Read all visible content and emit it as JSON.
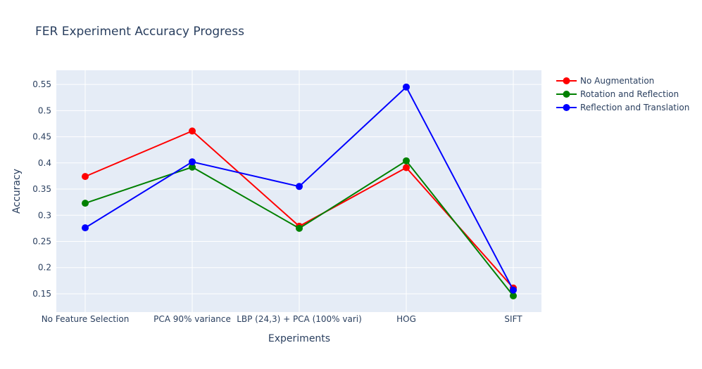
{
  "chart_data": {
    "type": "line",
    "title": "FER Experiment Accuracy Progress",
    "xlabel": "Experiments",
    "ylabel": "Accuracy",
    "categories": [
      "No Feature Selection",
      "PCA 90% variance",
      "LBP (24,3) + PCA (100% vari)",
      "HOG",
      "SIFT"
    ],
    "yticks": [
      "0.15",
      "0.2",
      "0.25",
      "0.3",
      "0.35",
      "0.4",
      "0.45",
      "0.5",
      "0.55"
    ],
    "ylim": [
      0.115,
      0.577
    ],
    "grid": true,
    "legend_position": "top-right outside",
    "series": [
      {
        "name": "No Augmentation",
        "color": "#ff0000",
        "values": [
          0.374,
          0.461,
          0.279,
          0.391,
          0.161
        ]
      },
      {
        "name": "Rotation and Reflection",
        "color": "#008000",
        "values": [
          0.323,
          0.392,
          0.275,
          0.404,
          0.146
        ]
      },
      {
        "name": "Reflection and Translation",
        "color": "#0000ff",
        "values": [
          0.276,
          0.402,
          0.355,
          0.545,
          0.157
        ]
      }
    ]
  }
}
